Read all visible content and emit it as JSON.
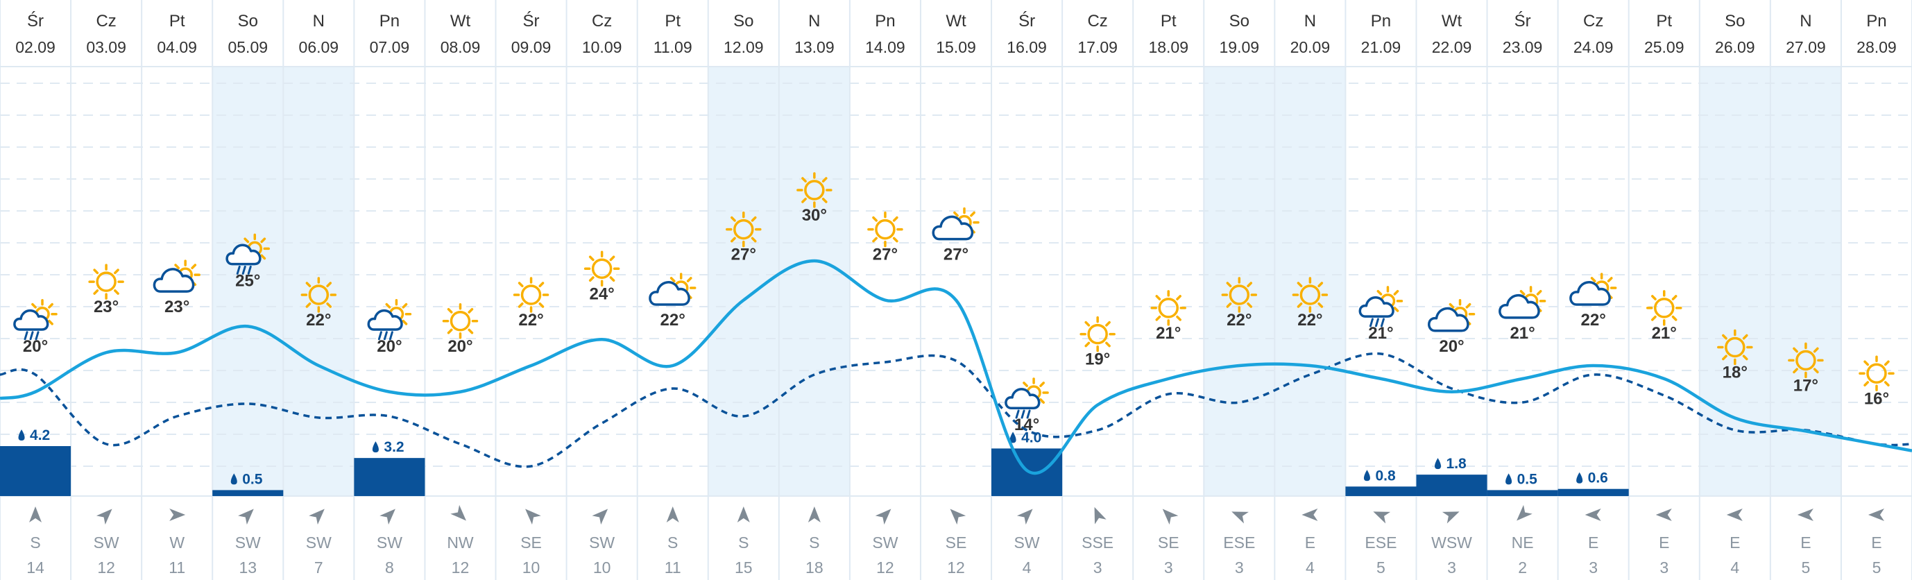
{
  "colors": {
    "temp_line": "#1aa3dd",
    "precip_bar": "#0a5299",
    "weekend_bg": "#e8f3fb",
    "grid": "#dfe9f2",
    "sun": "#f9b000",
    "cloud": "#0a5299",
    "arrow": "#7f8a94",
    "text": "#333333",
    "wind_text": "#8a95a0"
  },
  "days": [
    {
      "dow": "Śr",
      "date": "02.09",
      "temp": "20°",
      "precip": 4.2,
      "precip_label": "4.2",
      "wind_dir": "S",
      "wind_speed": "14",
      "icon": "sun-rain-icon",
      "weekend": false
    },
    {
      "dow": "Cz",
      "date": "03.09",
      "temp": "23°",
      "precip": 0,
      "precip_label": "",
      "wind_dir": "SW",
      "wind_speed": "12",
      "icon": "sun-icon",
      "weekend": false
    },
    {
      "dow": "Pt",
      "date": "04.09",
      "temp": "23°",
      "precip": 0,
      "precip_label": "",
      "wind_dir": "W",
      "wind_speed": "11",
      "icon": "cloud-sun-icon",
      "weekend": false
    },
    {
      "dow": "So",
      "date": "05.09",
      "temp": "25°",
      "precip": 0.5,
      "precip_label": "0.5",
      "wind_dir": "SW",
      "wind_speed": "13",
      "icon": "sun-rain-icon",
      "weekend": true
    },
    {
      "dow": "N",
      "date": "06.09",
      "temp": "22°",
      "precip": 0,
      "precip_label": "",
      "wind_dir": "SW",
      "wind_speed": "7",
      "icon": "sun-icon",
      "weekend": true
    },
    {
      "dow": "Pn",
      "date": "07.09",
      "temp": "20°",
      "precip": 3.2,
      "precip_label": "3.2",
      "wind_dir": "SW",
      "wind_speed": "8",
      "icon": "sun-rain-icon",
      "weekend": false
    },
    {
      "dow": "Wt",
      "date": "08.09",
      "temp": "20°",
      "precip": 0,
      "precip_label": "",
      "wind_dir": "NW",
      "wind_speed": "12",
      "icon": "sun-icon",
      "weekend": false
    },
    {
      "dow": "Śr",
      "date": "09.09",
      "temp": "22°",
      "precip": 0,
      "precip_label": "",
      "wind_dir": "SE",
      "wind_speed": "10",
      "icon": "sun-icon",
      "weekend": false
    },
    {
      "dow": "Cz",
      "date": "10.09",
      "temp": "24°",
      "precip": 0,
      "precip_label": "",
      "wind_dir": "SW",
      "wind_speed": "10",
      "icon": "sun-icon",
      "weekend": false
    },
    {
      "dow": "Pt",
      "date": "11.09",
      "temp": "22°",
      "precip": 0,
      "precip_label": "",
      "wind_dir": "S",
      "wind_speed": "11",
      "icon": "cloud-sun-icon",
      "weekend": false
    },
    {
      "dow": "So",
      "date": "12.09",
      "temp": "27°",
      "precip": 0,
      "precip_label": "",
      "wind_dir": "S",
      "wind_speed": "15",
      "icon": "sun-icon",
      "weekend": true
    },
    {
      "dow": "N",
      "date": "13.09",
      "temp": "30°",
      "precip": 0,
      "precip_label": "",
      "wind_dir": "S",
      "wind_speed": "18",
      "icon": "sun-icon",
      "weekend": true
    },
    {
      "dow": "Pn",
      "date": "14.09",
      "temp": "27°",
      "precip": 0,
      "precip_label": "",
      "wind_dir": "SW",
      "wind_speed": "12",
      "icon": "sun-icon",
      "weekend": false
    },
    {
      "dow": "Wt",
      "date": "15.09",
      "temp": "27°",
      "precip": 0,
      "precip_label": "",
      "wind_dir": "SE",
      "wind_speed": "12",
      "icon": "cloud-sun-icon",
      "weekend": false
    },
    {
      "dow": "Śr",
      "date": "16.09",
      "temp": "14°",
      "precip": 4.0,
      "precip_label": "4.0",
      "wind_dir": "SW",
      "wind_speed": "4",
      "icon": "sun-rain-icon",
      "weekend": false
    },
    {
      "dow": "Cz",
      "date": "17.09",
      "temp": "19°",
      "precip": 0,
      "precip_label": "",
      "wind_dir": "SSE",
      "wind_speed": "3",
      "icon": "sun-icon",
      "weekend": false
    },
    {
      "dow": "Pt",
      "date": "18.09",
      "temp": "21°",
      "precip": 0,
      "precip_label": "",
      "wind_dir": "SE",
      "wind_speed": "3",
      "icon": "sun-icon",
      "weekend": false
    },
    {
      "dow": "So",
      "date": "19.09",
      "temp": "22°",
      "precip": 0,
      "precip_label": "",
      "wind_dir": "ESE",
      "wind_speed": "3",
      "icon": "sun-icon",
      "weekend": true
    },
    {
      "dow": "N",
      "date": "20.09",
      "temp": "22°",
      "precip": 0,
      "precip_label": "",
      "wind_dir": "E",
      "wind_speed": "4",
      "icon": "sun-icon",
      "weekend": true
    },
    {
      "dow": "Pn",
      "date": "21.09",
      "temp": "21°",
      "precip": 0.8,
      "precip_label": "0.8",
      "wind_dir": "ESE",
      "wind_speed": "5",
      "icon": "sun-rain-icon",
      "weekend": false
    },
    {
      "dow": "Wt",
      "date": "22.09",
      "temp": "20°",
      "precip": 1.8,
      "precip_label": "1.8",
      "wind_dir": "WSW",
      "wind_speed": "3",
      "icon": "cloud-sun-icon",
      "weekend": false
    },
    {
      "dow": "Śr",
      "date": "23.09",
      "temp": "21°",
      "precip": 0.5,
      "precip_label": "0.5",
      "wind_dir": "NE",
      "wind_speed": "2",
      "icon": "cloud-sun-icon",
      "weekend": false
    },
    {
      "dow": "Cz",
      "date": "24.09",
      "temp": "22°",
      "precip": 0.6,
      "precip_label": "0.6",
      "wind_dir": "E",
      "wind_speed": "3",
      "icon": "cloud-sun-icon",
      "weekend": false
    },
    {
      "dow": "Pt",
      "date": "25.09",
      "temp": "21°",
      "precip": 0,
      "precip_label": "",
      "wind_dir": "E",
      "wind_speed": "3",
      "icon": "sun-icon",
      "weekend": false
    },
    {
      "dow": "So",
      "date": "26.09",
      "temp": "18°",
      "precip": 0,
      "precip_label": "",
      "wind_dir": "E",
      "wind_speed": "4",
      "icon": "sun-icon",
      "weekend": true
    },
    {
      "dow": "N",
      "date": "27.09",
      "temp": "17°",
      "precip": 0,
      "precip_label": "",
      "wind_dir": "E",
      "wind_speed": "5",
      "icon": "sun-icon",
      "weekend": true
    },
    {
      "dow": "Pn",
      "date": "28.09",
      "temp": "16°",
      "precip": 0,
      "precip_label": "",
      "wind_dir": "E",
      "wind_speed": "5",
      "icon": "sun-icon",
      "weekend": false
    }
  ],
  "chart_data": {
    "type": "line",
    "categories": [
      "02.09",
      "03.09",
      "04.09",
      "05.09",
      "06.09",
      "07.09",
      "08.09",
      "09.09",
      "10.09",
      "11.09",
      "12.09",
      "13.09",
      "14.09",
      "15.09",
      "16.09",
      "17.09",
      "18.09",
      "19.09",
      "20.09",
      "21.09",
      "22.09",
      "23.09",
      "24.09",
      "25.09",
      "26.09",
      "27.09",
      "28.09"
    ],
    "series": [
      {
        "values": [
          20,
          23,
          23,
          25,
          22,
          20,
          20,
          22,
          24,
          22,
          27,
          30,
          27,
          27,
          14,
          19,
          21,
          22,
          22,
          21,
          20,
          21,
          22,
          21,
          18,
          17,
          16
        ]
      },
      {
        "values": [
          4.2,
          0,
          0,
          0.5,
          0,
          3.2,
          0,
          0,
          0,
          0,
          0,
          0,
          0,
          0,
          4.0,
          0,
          0,
          0,
          0,
          0.8,
          1.8,
          0.5,
          0.6,
          0,
          0,
          0,
          0
        ]
      }
    ],
    "grid": true
  }
}
